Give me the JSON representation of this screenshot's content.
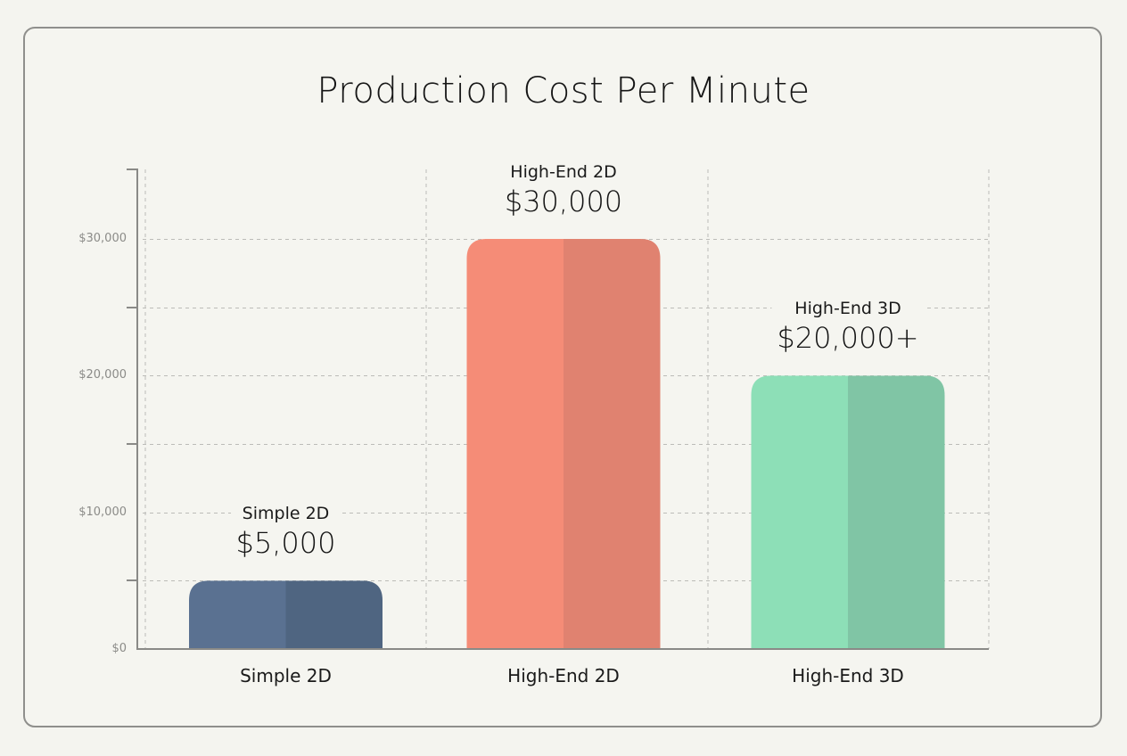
{
  "chart_data": {
    "type": "bar",
    "title": "Production Cost Per Minute",
    "xlabel": "",
    "ylabel": "",
    "categories": [
      "Simple 2D",
      "High-End 2D",
      "High-End 3D"
    ],
    "values": [
      5000,
      30000,
      20000
    ],
    "value_labels": [
      "$5,000",
      "$30,000",
      "$20,000+"
    ],
    "colors": [
      {
        "light": "#5a7191",
        "dark": "#4f6581"
      },
      {
        "light": "#f58c77",
        "dark": "#e08270"
      },
      {
        "light": "#8ddfb7",
        "dark": "#80c5a5"
      }
    ],
    "ylim": [
      0,
      35000
    ],
    "yticks": [
      0,
      10000,
      20000,
      30000
    ],
    "ytick_labels": [
      "$0",
      "$10,000",
      "$20,000",
      "$30,000"
    ],
    "minor_ticks": [
      5000,
      15000,
      25000
    ],
    "gridlines": [
      5000,
      10000,
      15000,
      20000,
      25000,
      30000
    ],
    "grid": true,
    "grid_style": "dashed",
    "legend": null
  },
  "header": {
    "title": "Production Cost Per Minute"
  },
  "bars": [
    {
      "category": "Simple 2D",
      "value_label": "$5,000",
      "axis_label": "Simple 2D"
    },
    {
      "category": "High-End 2D",
      "value_label": "$30,000",
      "axis_label": "High-End 2D"
    },
    {
      "category": "High-End 3D",
      "value_label": "$20,000+",
      "axis_label": "High-End 3D"
    }
  ],
  "y_axis": {
    "labels": [
      "$0",
      "$10,000",
      "$20,000",
      "$30,000"
    ]
  }
}
